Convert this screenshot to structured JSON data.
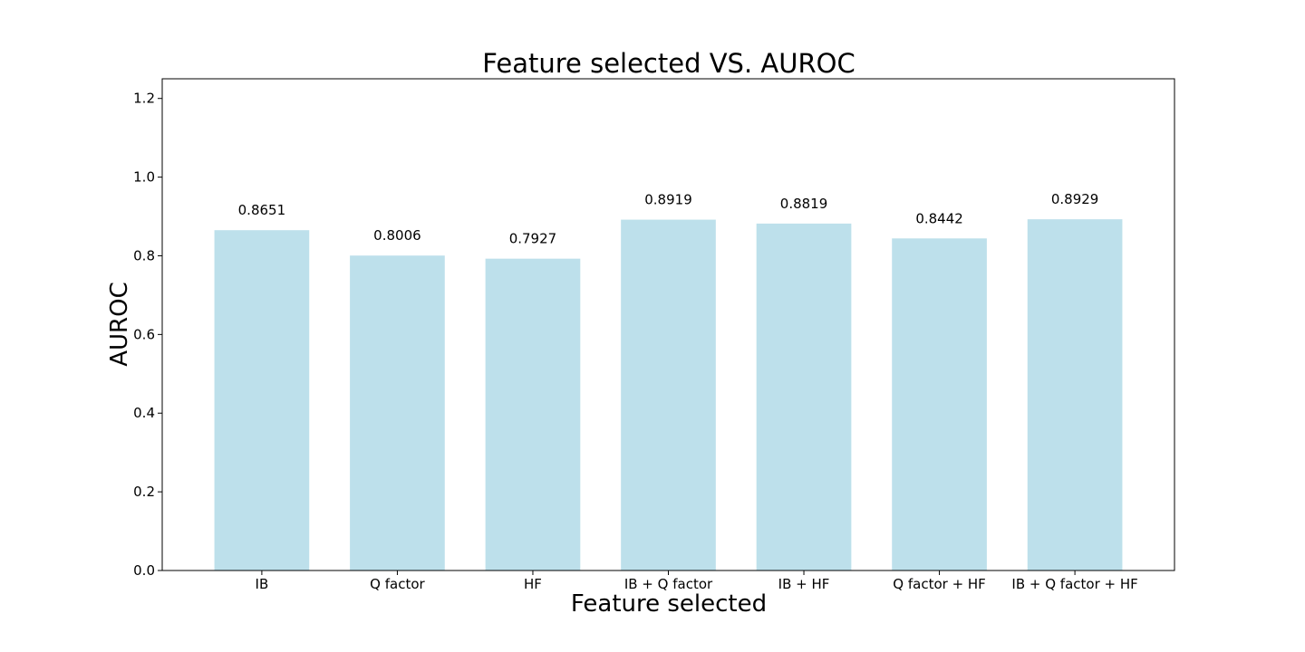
{
  "chart_data": {
    "type": "bar",
    "title": "Feature selected VS. AUROC",
    "xlabel": "Feature selected",
    "ylabel": "AUROC",
    "categories": [
      "IB",
      "Q factor",
      "HF",
      "IB + Q factor",
      "IB + HF",
      "Q factor + HF",
      "IB + Q factor + HF"
    ],
    "values": [
      0.8651,
      0.8006,
      0.7927,
      0.8919,
      0.8819,
      0.8442,
      0.8929
    ],
    "value_labels": [
      "0.8651",
      "0.8006",
      "0.7927",
      "0.8919",
      "0.8819",
      "0.8442",
      "0.8929"
    ],
    "ylim": [
      0,
      1.25
    ],
    "yticks": [
      0.0,
      0.2,
      0.4,
      0.6,
      0.8,
      1.0,
      1.2
    ],
    "ytick_labels": [
      "0.0",
      "0.2",
      "0.4",
      "0.6",
      "0.8",
      "1.0",
      "1.2"
    ],
    "grid": false,
    "bar_color": "#add8e6"
  }
}
